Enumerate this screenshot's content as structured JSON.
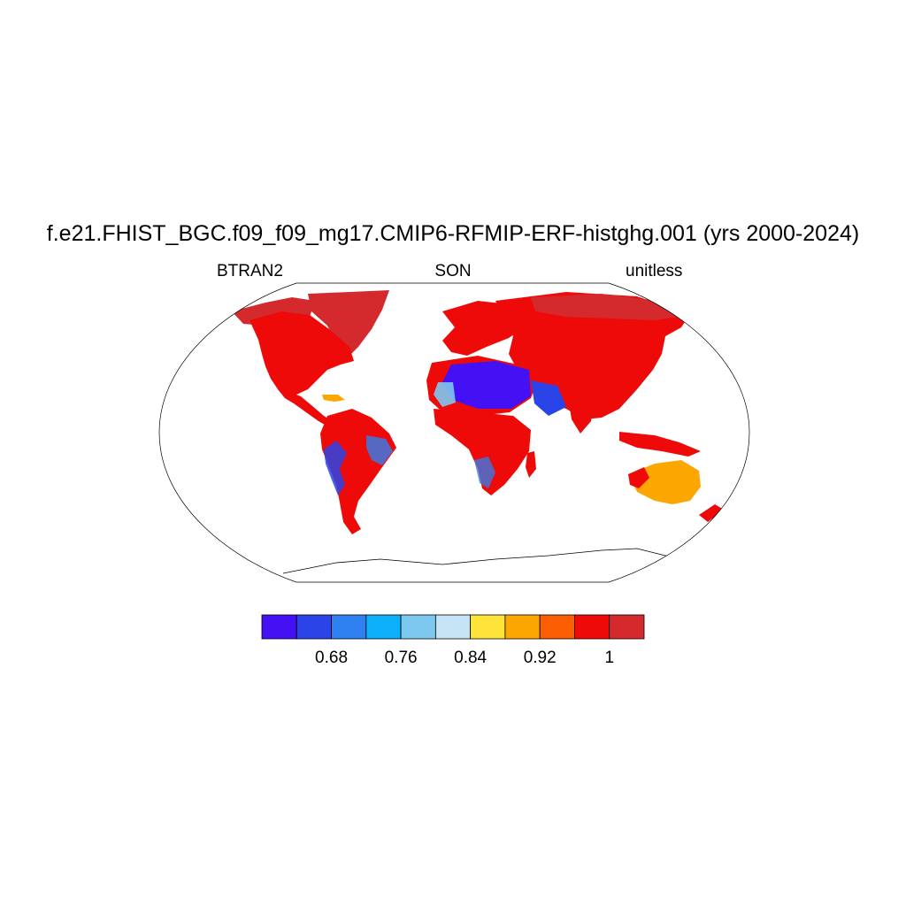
{
  "title": "f.e21.FHIST_BGC.f09_f09_mg17.CMIP6-RFMIP-ERF-histghg.001 (yrs 2000-2024)",
  "variable": "BTRAN2",
  "season": "SON",
  "units": "unitless",
  "colorbar": {
    "colors": [
      "#4411f5",
      "#2a44e8",
      "#2f80f0",
      "#0cb0fa",
      "#7cc8ef",
      "#c4e3f5",
      "#fde33a",
      "#fca602",
      "#fc5e02",
      "#ef0a0a",
      "#d42a2e"
    ],
    "labels": [
      "0.68",
      "0.76",
      "0.84",
      "0.92",
      "1"
    ]
  },
  "map": {
    "projection": "Robinson",
    "ocean_color": "#ffffff",
    "dominant_land_color": "#ef0a0a"
  }
}
